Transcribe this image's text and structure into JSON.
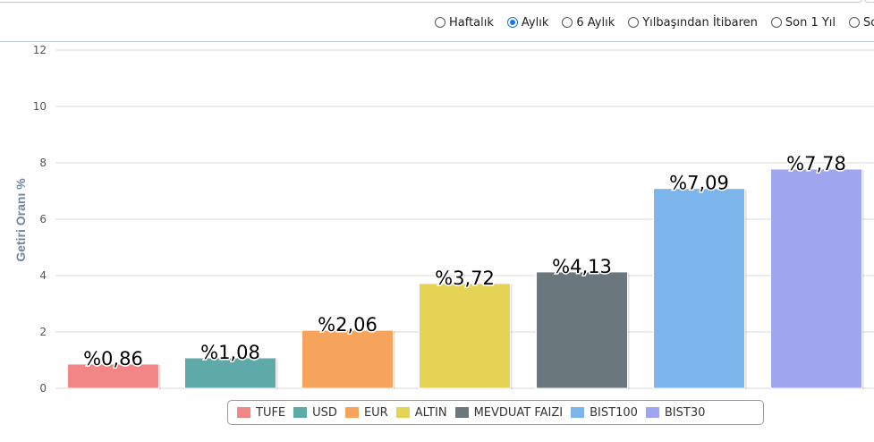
{
  "period_selector": {
    "options": [
      {
        "label": "Haftalık",
        "checked": false
      },
      {
        "label": "Aylık",
        "checked": true
      },
      {
        "label": "6 Aylık",
        "checked": false
      },
      {
        "label": "Yılbaşından İtibaren",
        "checked": false
      },
      {
        "label": "Son 1 Yıl",
        "checked": false
      },
      {
        "label": "So",
        "checked": false
      }
    ]
  },
  "chart_data": {
    "type": "bar",
    "title": "",
    "xlabel": "",
    "ylabel": "Getiri Oranı %",
    "ylim": [
      0,
      12
    ],
    "yticks": [
      0,
      2,
      4,
      6,
      8,
      10,
      12
    ],
    "grid": true,
    "legend_position": "bottom",
    "categories": [
      "TUFE",
      "USD",
      "EUR",
      "ALTIN",
      "MEVDUAT FAIZI",
      "BIST100",
      "BIST30"
    ],
    "values": [
      0.86,
      1.08,
      2.06,
      3.72,
      4.13,
      7.09,
      7.78
    ],
    "data_labels": [
      "%0,86",
      "%1,08",
      "%2,06",
      "%3,72",
      "%4,13",
      "%7,09",
      "%7,78"
    ],
    "colors": [
      "#f28585",
      "#5eaaa8",
      "#f6a35b",
      "#e4d354",
      "#6a787e",
      "#7cb5ec",
      "#a0a6ee"
    ]
  }
}
